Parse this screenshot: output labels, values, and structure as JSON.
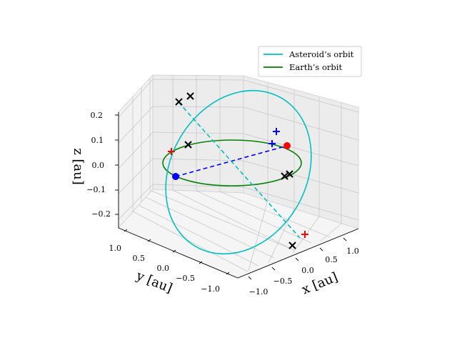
{
  "chart_data": {
    "type": "line",
    "projection": "3d",
    "xlabel": "x [au]",
    "ylabel": "y [au]",
    "zlabel": "z [au]",
    "xlim": [
      -1.2,
      1.2
    ],
    "ylim": [
      -1.2,
      1.2
    ],
    "zlim": [
      -0.25,
      0.25
    ],
    "x_ticks": [
      "−1.0",
      "−0.5",
      "0.0",
      "0.5",
      "1.0"
    ],
    "y_ticks": [
      "1.0",
      "0.5",
      "0.0",
      "−0.5",
      "−1.0"
    ],
    "z_ticks": [
      "−0.2",
      "−0.1",
      "0.0",
      "0.1",
      "0.2"
    ],
    "grid": true,
    "legend_position": "top-right",
    "series": [
      {
        "name": "Asteroid’s orbit",
        "color": "#00bfbf",
        "style": "solid",
        "shape": "ellipse",
        "semi_major_axis": 1.0,
        "eccentricity": 0.05,
        "inclination_deg": 13,
        "ascending_node_direction": [
          0.7,
          0.7
        ]
      },
      {
        "name": "Earth’s orbit",
        "color": "#008000",
        "style": "solid",
        "shape": "circle",
        "radius": 1.0,
        "z": 0
      }
    ],
    "markers": [
      {
        "type": "circle",
        "color": "#0000ff",
        "x": -0.7,
        "y": 0.7,
        "z": 0.0
      },
      {
        "type": "circle",
        "color": "#ff0000",
        "x": 0.7,
        "y": -0.7,
        "z": 0.0
      },
      {
        "type": "plus",
        "color": "#ff0000",
        "x": -0.93,
        "y": 0.34,
        "z": 0.0
      },
      {
        "type": "plus",
        "color": "#ff0000",
        "x": 0.5,
        "y": -0.86,
        "z": -0.12
      },
      {
        "type": "plus",
        "color": "#0000ff",
        "x": 0.71,
        "y": -0.29,
        "z": 0.06
      },
      {
        "type": "plus",
        "color": "#0000ff",
        "x": 0.5,
        "y": -0.77,
        "z": 0.06
      },
      {
        "type": "cross",
        "color": "#000000",
        "x": -0.59,
        "y": 0.8,
        "z": 0.22
      },
      {
        "type": "cross",
        "color": "#000000",
        "x": -0.75,
        "y": 0.66,
        "z": 0.23
      },
      {
        "type": "cross",
        "color": "#000000",
        "x": -0.76,
        "y": 0.63,
        "z": 0.0
      },
      {
        "type": "cross",
        "color": "#000000",
        "x": 0.31,
        "y": -0.84,
        "z": 0.0
      },
      {
        "type": "cross",
        "color": "#000000",
        "x": 0.37,
        "y": -0.82,
        "z": 0.0
      },
      {
        "type": "cross",
        "color": "#000000",
        "x": 0.53,
        "y": -1.0,
        "z": -0.21
      }
    ],
    "connectors": [
      {
        "color": "#0000ff",
        "style": "dashed",
        "from": [
          -0.7,
          0.7,
          0.0
        ],
        "to": [
          0.7,
          -0.7,
          0.0
        ]
      },
      {
        "color": "#00bfbf",
        "style": "dashed",
        "from": [
          -0.59,
          0.8,
          0.22
        ],
        "to": [
          0.53,
          -1.0,
          -0.21
        ]
      }
    ]
  }
}
